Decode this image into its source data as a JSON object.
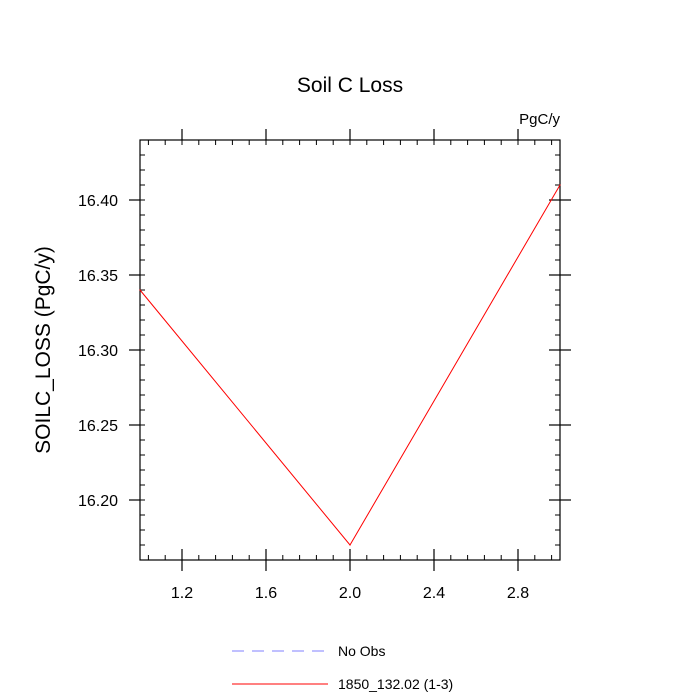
{
  "chart_data": {
    "type": "line",
    "title": "Soil C Loss",
    "units_label": "PgC/y",
    "ylabel": "SOILC_LOSS  (PgC/y)",
    "xlabel": "",
    "xlim": [
      1.0,
      3.0
    ],
    "ylim": [
      16.16,
      16.44
    ],
    "x_ticks": [
      "1.2",
      "1.6",
      "2.0",
      "2.4",
      "2.8"
    ],
    "y_ticks": [
      "16.20",
      "16.25",
      "16.30",
      "16.35",
      "16.40"
    ],
    "grid": false,
    "legend_position": "bottom",
    "series": [
      {
        "name": "1850_132.02 (1-3)",
        "color": "#ff0000",
        "line_style": "solid",
        "x": [
          1.0,
          2.0,
          3.0
        ],
        "y": [
          16.34,
          16.17,
          16.41
        ]
      }
    ],
    "legend": [
      {
        "label": "No Obs",
        "color": "#8080ff",
        "line_style": "dashed"
      },
      {
        "label": "1850_132.02 (1-3)",
        "color": "#ff0000",
        "line_style": "solid"
      }
    ]
  }
}
